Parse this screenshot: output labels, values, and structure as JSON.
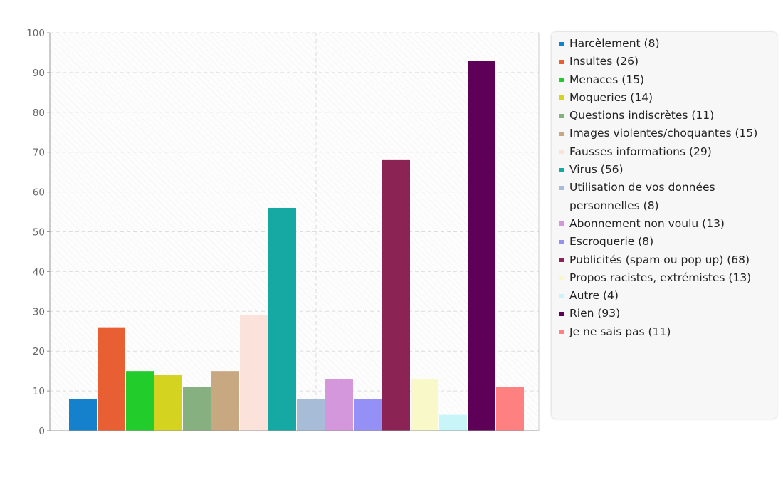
{
  "chart_data": {
    "type": "bar",
    "ylim": [
      0,
      100
    ],
    "yticks": [
      0,
      10,
      20,
      30,
      40,
      50,
      60,
      70,
      80,
      90,
      100
    ],
    "grid": true,
    "legend_position": "right",
    "series": [
      {
        "name": "Harcèlement (8)",
        "value": 8,
        "color": "#1580cb"
      },
      {
        "name": "Insultes (26)",
        "value": 26,
        "color": "#e85f34"
      },
      {
        "name": "Menaces (15)",
        "value": 15,
        "color": "#22cc2a"
      },
      {
        "name": "Moqueries (14)",
        "value": 14,
        "color": "#d4d320"
      },
      {
        "name": "Questions indiscrètes (11)",
        "value": 11,
        "color": "#86b080"
      },
      {
        "name": "Images violentes/choquantes (15)",
        "value": 15,
        "color": "#c8a880"
      },
      {
        "name": "Fausses informations (29)",
        "value": 29,
        "color": "#fbe3dc"
      },
      {
        "name": "Virus (56)",
        "value": 56,
        "color": "#16a8a2"
      },
      {
        "name": "Utilisation de vos données personnelles (8)",
        "value": 8,
        "color": "#a6bcd7"
      },
      {
        "name": "Abonnement non voulu (13)",
        "value": 13,
        "color": "#d497dc"
      },
      {
        "name": "Escroquerie (8)",
        "value": 8,
        "color": "#9490f5"
      },
      {
        "name": "Publicités (spam ou pop up) (68)",
        "value": 68,
        "color": "#8c2355"
      },
      {
        "name": "Propos racistes, extrémistes (13)",
        "value": 13,
        "color": "#f9f8c8"
      },
      {
        "name": "Autre (4)",
        "value": 4,
        "color": "#c8f6f8"
      },
      {
        "name": "Rien (93)",
        "value": 93,
        "color": "#5e0058"
      },
      {
        "name": "Je ne sais pas (11)",
        "value": 11,
        "color": "#fe8080"
      }
    ]
  }
}
